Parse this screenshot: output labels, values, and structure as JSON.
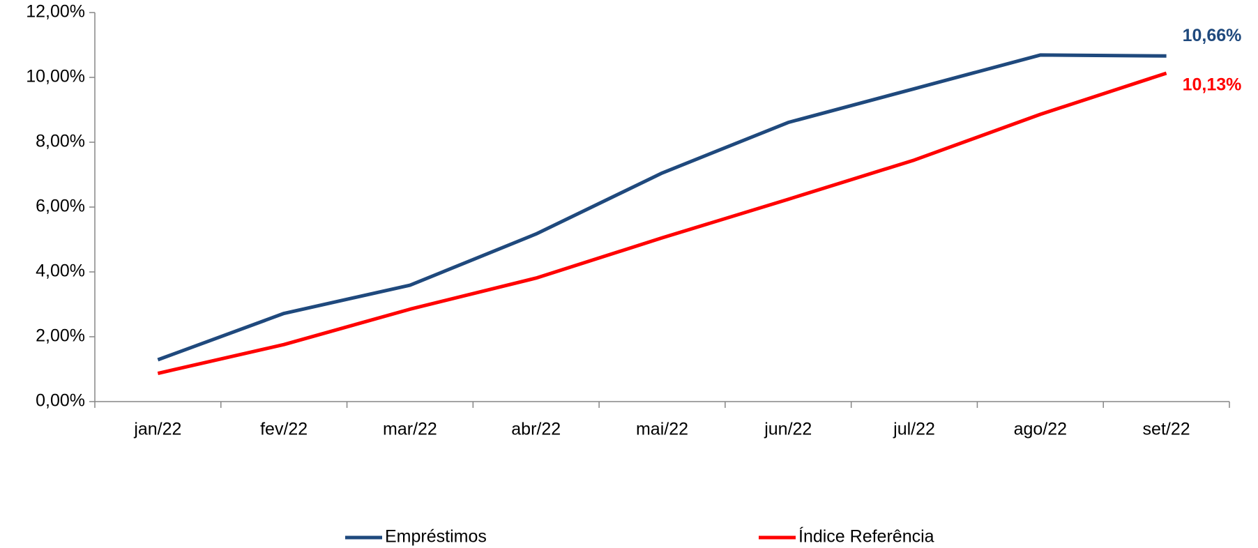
{
  "chart_data": {
    "type": "line",
    "categories": [
      "jan/22",
      "fev/22",
      "mar/22",
      "abr/22",
      "mai/22",
      "jun/22",
      "jul/22",
      "ago/22",
      "set/22"
    ],
    "series": [
      {
        "name": "Empréstimos",
        "color": "#1f497d",
        "values": [
          1.29,
          2.72,
          3.59,
          5.17,
          7.05,
          8.61,
          9.65,
          10.69,
          10.66
        ],
        "value_labels": [
          null,
          null,
          null,
          null,
          null,
          null,
          null,
          null,
          "10,66%"
        ]
      },
      {
        "name": "Índice Referência",
        "color": "#ff0000",
        "values": [
          0.87,
          1.76,
          2.85,
          3.81,
          5.05,
          6.24,
          7.45,
          8.86,
          10.13
        ],
        "value_labels": [
          null,
          null,
          null,
          null,
          null,
          null,
          null,
          null,
          "10,13%"
        ]
      }
    ],
    "ylim": [
      0,
      12
    ],
    "yticks": [
      {
        "value": 0,
        "label": "0,00%"
      },
      {
        "value": 2,
        "label": "2,00%"
      },
      {
        "value": 4,
        "label": "4,00%"
      },
      {
        "value": 6,
        "label": "6,00%"
      },
      {
        "value": 8,
        "label": "8,00%"
      },
      {
        "value": 10,
        "label": "10,00%"
      },
      {
        "value": 12,
        "label": "12,00%"
      }
    ],
    "grid": false,
    "legend": "bottom"
  }
}
